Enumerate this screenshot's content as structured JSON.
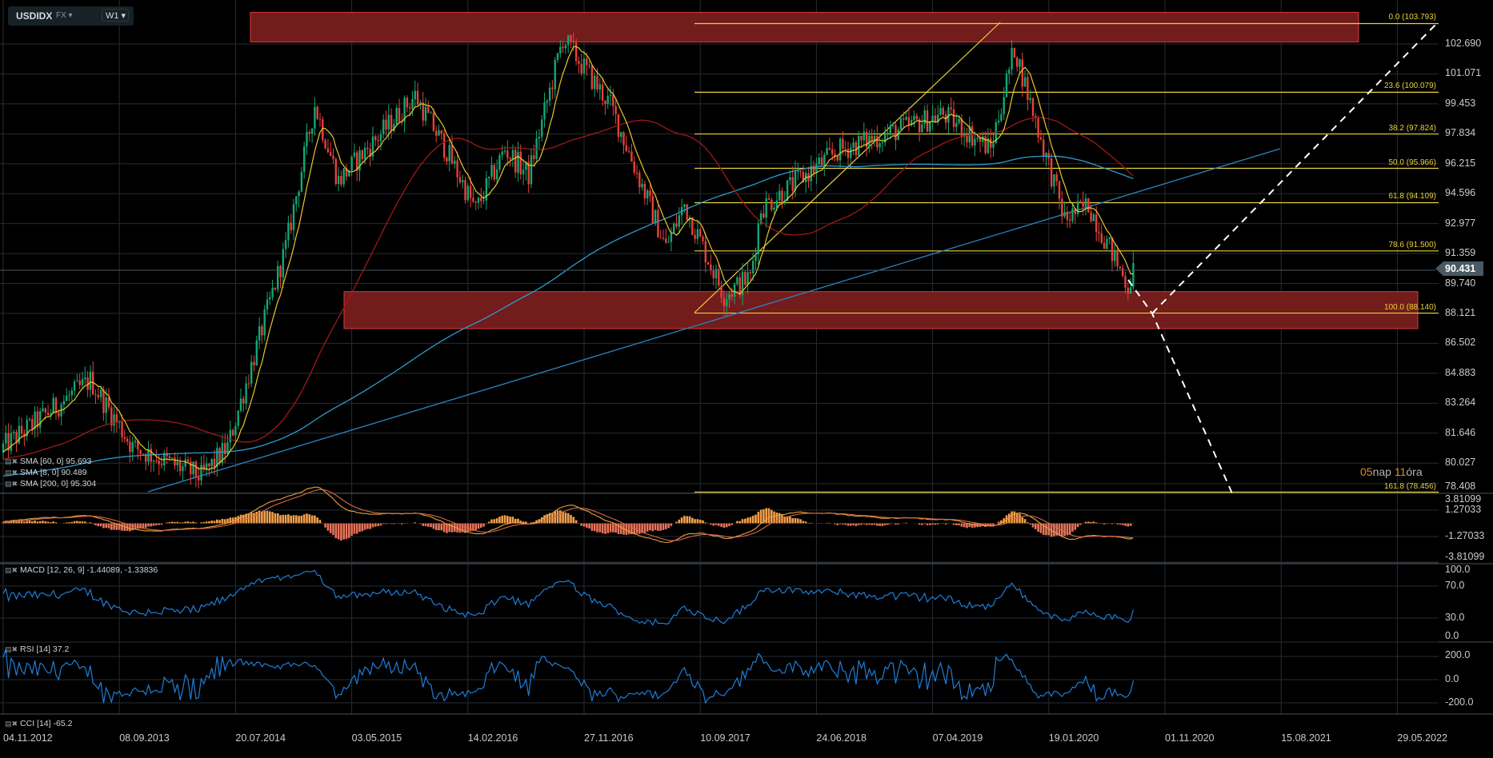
{
  "header": {
    "symbol": "USDIDX",
    "market": "FX",
    "timeframe": "W1"
  },
  "legends": {
    "sma60": "SMA [60, 0] 95.693",
    "sma8": "SMA [8, 0] 90.489",
    "sma200": "SMA [200, 0] 95.304",
    "macd": "MACD [12, 26, 9] -1.44089, -1.33836",
    "rsi": "RSI [14] 37.2",
    "cci": "CCI [14] -65.2"
  },
  "current_price": "90.431",
  "countdown": {
    "days": "05",
    "days_unit": "nap",
    "hours": "11",
    "hours_unit": "óra"
  },
  "colors": {
    "up": "#12a873",
    "down": "#e8403a",
    "sma8": "#e8c82a",
    "sma60": "#a01818",
    "sma200": "#2e9bd0",
    "fib": "#e8d23a",
    "zone": "#721c1c",
    "zone_border": "#d83a3a",
    "rsi": "#1e7fd8",
    "macd": "#e8a33a",
    "signal": "#d8684a"
  },
  "chart_data": {
    "type": "candlestick",
    "title": "USDIDX FX W1",
    "price_axis": [
      "102.690",
      "101.071",
      "99.453",
      "97.834",
      "96.215",
      "94.596",
      "92.977",
      "91.359",
      "89.740",
      "88.121",
      "86.502",
      "84.883",
      "83.264",
      "81.646",
      "80.027",
      "78.408"
    ],
    "macd_axis": [
      "3.81099",
      "1.27033",
      "-1.27033",
      "-3.81099"
    ],
    "rsi_axis": [
      "100.0",
      "70.0",
      "30.0",
      "0.0"
    ],
    "cci_axis": [
      "200.0",
      "0.0",
      "-200.0"
    ],
    "date_axis": [
      "04.11.2012",
      "08.09.2013",
      "20.07.2014",
      "03.05.2015",
      "14.02.2016",
      "27.11.2016",
      "10.09.2017",
      "24.06.2018",
      "07.04.2019",
      "19.01.2020",
      "01.11.2020",
      "15.08.2021",
      "29.05.2022"
    ],
    "price_path_week_close": [
      [
        0,
        80.9
      ],
      [
        33,
        84.5
      ],
      [
        49,
        80.9
      ],
      [
        75,
        79.3
      ],
      [
        85,
        80.9
      ],
      [
        107,
        91.7
      ],
      [
        118,
        99.4
      ],
      [
        127,
        95.3
      ],
      [
        156,
        99.9
      ],
      [
        168,
        96.9
      ],
      [
        179,
        93.7
      ],
      [
        190,
        97.0
      ],
      [
        199,
        95.6
      ],
      [
        212,
        103.0
      ],
      [
        230,
        99.4
      ],
      [
        251,
        91.7
      ],
      [
        258,
        94.0
      ],
      [
        273,
        89.1
      ],
      [
        283,
        90.1
      ],
      [
        287,
        93.8
      ],
      [
        316,
        96.9
      ],
      [
        356,
        98.9
      ],
      [
        374,
        97.0
      ],
      [
        383,
        102.5
      ],
      [
        388,
        100.0
      ],
      [
        402,
        93.2
      ],
      [
        411,
        94.0
      ],
      [
        426,
        89.6
      ],
      [
        428,
        90.4
      ]
    ],
    "fibonacci": [
      {
        "label": "0.0 (103.793)",
        "price": 103.793
      },
      {
        "label": "23.6 (100.079)",
        "price": 100.079
      },
      {
        "label": "38.2 (97.824)",
        "price": 97.824
      },
      {
        "label": "50.0 (95.966)",
        "price": 95.966
      },
      {
        "label": "61.8 (94.109)",
        "price": 94.109
      },
      {
        "label": "78.6 (91.500)",
        "price": 91.5
      },
      {
        "label": "100.0 (88.140)",
        "price": 88.14
      },
      {
        "label": "161.8 (78.456)",
        "price": 78.456
      }
    ],
    "zones": [
      {
        "from": 102.8,
        "to": 104.4
      },
      {
        "from": 87.3,
        "to": 89.3
      }
    ]
  }
}
